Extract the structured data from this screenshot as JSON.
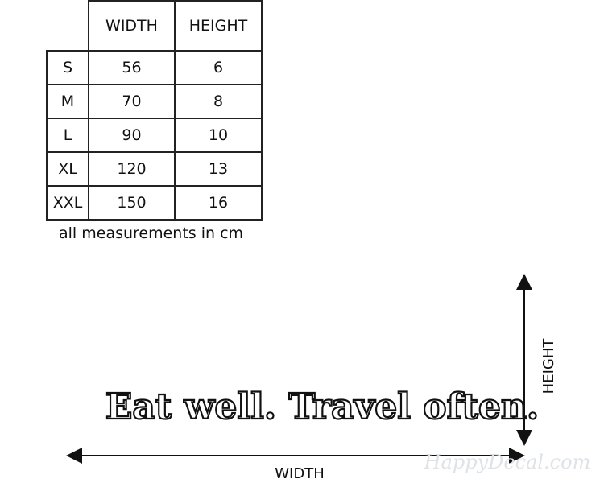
{
  "table": {
    "header": [
      "",
      "WIDTH",
      "HEIGHT"
    ],
    "rows": [
      [
        "S",
        "56",
        "6"
      ],
      [
        "M",
        "70",
        "8"
      ],
      [
        "L",
        "90",
        "10"
      ],
      [
        "XL",
        "120",
        "13"
      ],
      [
        "XXL",
        "150",
        "16"
      ]
    ]
  },
  "note": "all measurements in cm",
  "decal_text": "Eat well. Travel often.",
  "width_label": "WIDTH",
  "height_label": "HEIGHT",
  "watermark": "HappyDecal.com"
}
